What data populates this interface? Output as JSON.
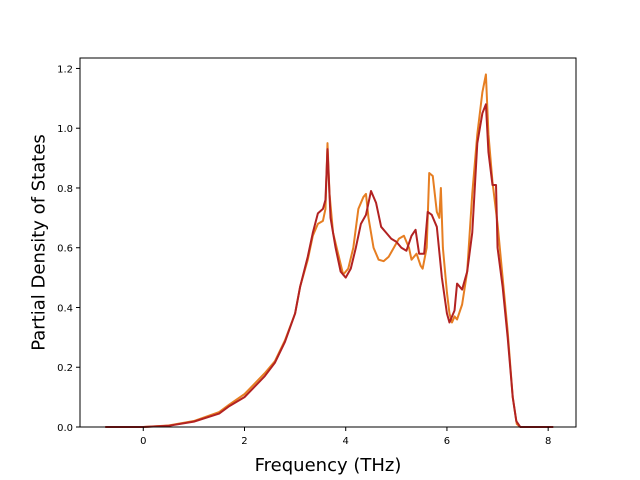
{
  "chart_data": {
    "type": "line",
    "title": "",
    "xlabel": "Frequency (THz)",
    "ylabel": "Partial Density of States",
    "xlim": [
      -1.25,
      8.55
    ],
    "ylim": [
      0.0,
      1.235
    ],
    "xticks": [
      0,
      2,
      4,
      6,
      8
    ],
    "yticks": [
      0.0,
      0.2,
      0.4,
      0.6,
      0.8,
      1.0,
      1.2
    ],
    "xtick_labels": [
      "0",
      "2",
      "4",
      "6",
      "8"
    ],
    "ytick_labels": [
      "0.0",
      "0.2",
      "0.4",
      "0.6",
      "0.8",
      "1.0",
      "1.2"
    ],
    "grid": false,
    "legend": false,
    "series": [
      {
        "color": "#e67e22",
        "points": [
          [
            -0.75,
            0
          ],
          [
            0,
            0
          ],
          [
            0.5,
            0.005
          ],
          [
            1.0,
            0.02
          ],
          [
            1.5,
            0.05
          ],
          [
            1.7,
            0.075
          ],
          [
            2.0,
            0.11
          ],
          [
            2.4,
            0.18
          ],
          [
            2.6,
            0.22
          ],
          [
            2.8,
            0.29
          ],
          [
            3.0,
            0.38
          ],
          [
            3.1,
            0.47
          ],
          [
            3.25,
            0.56
          ],
          [
            3.35,
            0.64
          ],
          [
            3.45,
            0.68
          ],
          [
            3.55,
            0.69
          ],
          [
            3.6,
            0.73
          ],
          [
            3.64,
            0.95
          ],
          [
            3.68,
            0.78
          ],
          [
            3.75,
            0.65
          ],
          [
            3.85,
            0.58
          ],
          [
            3.95,
            0.51
          ],
          [
            4.05,
            0.53
          ],
          [
            4.15,
            0.6
          ],
          [
            4.25,
            0.73
          ],
          [
            4.35,
            0.77
          ],
          [
            4.4,
            0.78
          ],
          [
            4.45,
            0.7
          ],
          [
            4.55,
            0.6
          ],
          [
            4.65,
            0.56
          ],
          [
            4.75,
            0.555
          ],
          [
            4.85,
            0.57
          ],
          [
            4.95,
            0.6
          ],
          [
            5.05,
            0.63
          ],
          [
            5.15,
            0.64
          ],
          [
            5.25,
            0.6
          ],
          [
            5.3,
            0.56
          ],
          [
            5.4,
            0.58
          ],
          [
            5.48,
            0.54
          ],
          [
            5.52,
            0.53
          ],
          [
            5.6,
            0.6
          ],
          [
            5.65,
            0.85
          ],
          [
            5.72,
            0.84
          ],
          [
            5.8,
            0.72
          ],
          [
            5.85,
            0.7
          ],
          [
            5.88,
            0.8
          ],
          [
            5.92,
            0.6
          ],
          [
            6.0,
            0.45
          ],
          [
            6.05,
            0.38
          ],
          [
            6.1,
            0.35
          ],
          [
            6.15,
            0.37
          ],
          [
            6.2,
            0.36
          ],
          [
            6.3,
            0.41
          ],
          [
            6.4,
            0.52
          ],
          [
            6.5,
            0.78
          ],
          [
            6.6,
            0.98
          ],
          [
            6.7,
            1.12
          ],
          [
            6.77,
            1.18
          ],
          [
            6.82,
            0.98
          ],
          [
            6.9,
            0.82
          ],
          [
            7.0,
            0.68
          ],
          [
            7.1,
            0.5
          ],
          [
            7.2,
            0.32
          ],
          [
            7.3,
            0.1
          ],
          [
            7.38,
            0.01
          ],
          [
            7.45,
            0
          ],
          [
            8.1,
            0
          ]
        ]
      },
      {
        "color": "#b22222",
        "points": [
          [
            -0.75,
            0
          ],
          [
            0,
            0
          ],
          [
            0.5,
            0.004
          ],
          [
            1.0,
            0.018
          ],
          [
            1.5,
            0.045
          ],
          [
            1.7,
            0.07
          ],
          [
            2.0,
            0.1
          ],
          [
            2.4,
            0.17
          ],
          [
            2.6,
            0.215
          ],
          [
            2.8,
            0.285
          ],
          [
            3.0,
            0.38
          ],
          [
            3.1,
            0.47
          ],
          [
            3.25,
            0.57
          ],
          [
            3.35,
            0.65
          ],
          [
            3.45,
            0.715
          ],
          [
            3.55,
            0.73
          ],
          [
            3.6,
            0.76
          ],
          [
            3.64,
            0.93
          ],
          [
            3.7,
            0.7
          ],
          [
            3.8,
            0.6
          ],
          [
            3.9,
            0.52
          ],
          [
            4.0,
            0.5
          ],
          [
            4.1,
            0.53
          ],
          [
            4.2,
            0.6
          ],
          [
            4.3,
            0.68
          ],
          [
            4.4,
            0.71
          ],
          [
            4.45,
            0.75
          ],
          [
            4.5,
            0.79
          ],
          [
            4.6,
            0.75
          ],
          [
            4.7,
            0.67
          ],
          [
            4.8,
            0.65
          ],
          [
            4.9,
            0.63
          ],
          [
            5.0,
            0.62
          ],
          [
            5.1,
            0.6
          ],
          [
            5.2,
            0.59
          ],
          [
            5.3,
            0.64
          ],
          [
            5.38,
            0.66
          ],
          [
            5.45,
            0.58
          ],
          [
            5.55,
            0.58
          ],
          [
            5.62,
            0.72
          ],
          [
            5.7,
            0.71
          ],
          [
            5.8,
            0.67
          ],
          [
            5.9,
            0.5
          ],
          [
            6.0,
            0.38
          ],
          [
            6.05,
            0.35
          ],
          [
            6.15,
            0.39
          ],
          [
            6.2,
            0.48
          ],
          [
            6.3,
            0.46
          ],
          [
            6.4,
            0.52
          ],
          [
            6.5,
            0.65
          ],
          [
            6.6,
            0.95
          ],
          [
            6.7,
            1.05
          ],
          [
            6.77,
            1.08
          ],
          [
            6.82,
            0.92
          ],
          [
            6.9,
            0.81
          ],
          [
            6.97,
            0.81
          ],
          [
            7.0,
            0.6
          ],
          [
            7.1,
            0.47
          ],
          [
            7.2,
            0.3
          ],
          [
            7.3,
            0.1
          ],
          [
            7.37,
            0.02
          ],
          [
            7.45,
            0
          ],
          [
            8.1,
            0
          ]
        ]
      }
    ]
  }
}
